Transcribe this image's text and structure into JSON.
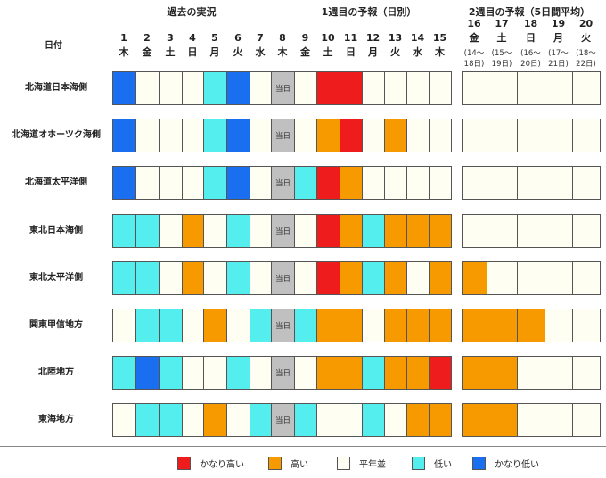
{
  "sections": {
    "past": "過去の実況",
    "week1": "1週目の予報（日別）",
    "week2": "2週目の予報（5日間平均）"
  },
  "row_header": "日付",
  "dates_week1": [
    {
      "day": "1",
      "dow": "木"
    },
    {
      "day": "2",
      "dow": "金"
    },
    {
      "day": "3",
      "dow": "土"
    },
    {
      "day": "4",
      "dow": "日"
    },
    {
      "day": "5",
      "dow": "月"
    },
    {
      "day": "6",
      "dow": "火"
    },
    {
      "day": "7",
      "dow": "水"
    },
    {
      "day": "8",
      "dow": "木"
    },
    {
      "day": "9",
      "dow": "金"
    },
    {
      "day": "10",
      "dow": "土"
    },
    {
      "day": "11",
      "dow": "日"
    },
    {
      "day": "12",
      "dow": "月"
    },
    {
      "day": "13",
      "dow": "火"
    },
    {
      "day": "14",
      "dow": "水"
    },
    {
      "day": "15",
      "dow": "木"
    }
  ],
  "dates_week2": [
    {
      "day": "16",
      "dow": "金",
      "range": [
        "(14～",
        "18日)"
      ]
    },
    {
      "day": "17",
      "dow": "土",
      "range": [
        "(15～",
        "19日)"
      ]
    },
    {
      "day": "18",
      "dow": "日",
      "range": [
        "(16～",
        "20日)"
      ]
    },
    {
      "day": "19",
      "dow": "月",
      "range": [
        "(17～",
        "21日)"
      ]
    },
    {
      "day": "20",
      "dow": "火",
      "range": [
        "(18～",
        "22日)"
      ]
    }
  ],
  "today_label": "当日",
  "colors": {
    "VH": "#ee1c1c",
    "H": "#f79a00",
    "N": "#fefef2",
    "L": "#55eeee",
    "VL": "#1a6ef0",
    "T": "#c0c0c0"
  },
  "rows": [
    {
      "name": "北海道日本海側",
      "week1": [
        "VL",
        "N",
        "N",
        "N",
        "L",
        "VL",
        "N",
        "T",
        "N",
        "VH",
        "VH",
        "N",
        "N",
        "N",
        "N"
      ],
      "week2": [
        "N",
        "N",
        "N",
        "N",
        "N"
      ]
    },
    {
      "name": "北海道オホーツク海側",
      "week1": [
        "VL",
        "N",
        "N",
        "N",
        "L",
        "VL",
        "N",
        "T",
        "N",
        "H",
        "VH",
        "N",
        "H",
        "N",
        "N"
      ],
      "week2": [
        "N",
        "N",
        "N",
        "N",
        "N"
      ]
    },
    {
      "name": "北海道太平洋側",
      "week1": [
        "VL",
        "N",
        "N",
        "N",
        "L",
        "VL",
        "N",
        "T",
        "L",
        "VH",
        "H",
        "N",
        "N",
        "N",
        "N"
      ],
      "week2": [
        "N",
        "N",
        "N",
        "N",
        "N"
      ]
    },
    {
      "name": "東北日本海側",
      "week1": [
        "L",
        "L",
        "N",
        "H",
        "N",
        "L",
        "N",
        "T",
        "N",
        "VH",
        "H",
        "L",
        "H",
        "H",
        "H"
      ],
      "week2": [
        "N",
        "N",
        "N",
        "N",
        "N"
      ]
    },
    {
      "name": "東北太平洋側",
      "week1": [
        "L",
        "L",
        "N",
        "H",
        "N",
        "L",
        "N",
        "T",
        "N",
        "VH",
        "H",
        "L",
        "H",
        "N",
        "H"
      ],
      "week2": [
        "H",
        "N",
        "N",
        "N",
        "N"
      ]
    },
    {
      "name": "関東甲信地方",
      "week1": [
        "N",
        "L",
        "L",
        "N",
        "H",
        "N",
        "L",
        "T",
        "L",
        "H",
        "H",
        "N",
        "H",
        "H",
        "H"
      ],
      "week2": [
        "H",
        "H",
        "H",
        "N",
        "N"
      ]
    },
    {
      "name": "北陸地方",
      "week1": [
        "L",
        "VL",
        "L",
        "N",
        "N",
        "L",
        "N",
        "T",
        "N",
        "H",
        "H",
        "L",
        "H",
        "H",
        "VH"
      ],
      "week2": [
        "H",
        "H",
        "N",
        "N",
        "N"
      ]
    },
    {
      "name": "東海地方",
      "week1": [
        "N",
        "L",
        "L",
        "N",
        "H",
        "N",
        "L",
        "T",
        "L",
        "N",
        "N",
        "L",
        "N",
        "H",
        "H"
      ],
      "week2": [
        "H",
        "H",
        "N",
        "N",
        "N"
      ]
    }
  ],
  "legend": [
    {
      "key": "VH",
      "label": "かなり高い"
    },
    {
      "key": "H",
      "label": "高い"
    },
    {
      "key": "N",
      "label": "平年並"
    },
    {
      "key": "L",
      "label": "低い"
    },
    {
      "key": "VL",
      "label": "かなり低い"
    }
  ]
}
